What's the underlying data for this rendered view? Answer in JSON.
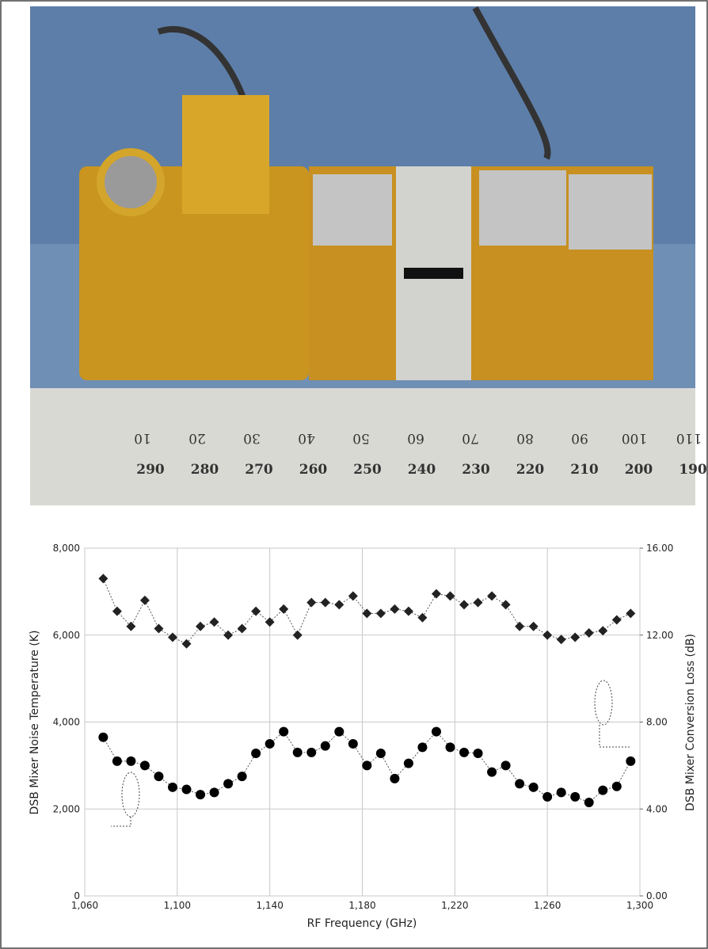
{
  "photo": {
    "ruler_top": [
      "10",
      "20",
      "30",
      "40",
      "50",
      "60",
      "70",
      "80",
      "90",
      "100",
      "110"
    ],
    "ruler_bottom": [
      "290",
      "280",
      "270",
      "260",
      "250",
      "240",
      "230",
      "220",
      "210",
      "200",
      "190"
    ]
  },
  "chart_data": {
    "type": "line",
    "x_label": "RF Frequency (GHz)",
    "y_label": "DSB Mixer Noise Temperature (K)",
    "y2_label": "DSB Mixer Conversion Loss (dB)",
    "xlim": [
      1060,
      1300
    ],
    "xticks": [
      {
        "value": 1060,
        "label": "1,060"
      },
      {
        "value": 1100,
        "label": "1,100"
      },
      {
        "value": 1140,
        "label": "1,140"
      },
      {
        "value": 1180,
        "label": "1,180"
      },
      {
        "value": 1220,
        "label": "1,220"
      },
      {
        "value": 1260,
        "label": "1,260"
      },
      {
        "value": 1300,
        "label": "1,300"
      }
    ],
    "ylim": [
      0,
      8000
    ],
    "yticks": [
      0,
      {
        "value": 2000,
        "label": "2,000"
      },
      {
        "value": 4000,
        "label": "4,000"
      },
      {
        "value": 6000,
        "label": "6,000"
      },
      {
        "value": 8000,
        "label": "8,000"
      }
    ],
    "y2lim": [
      0,
      16
    ],
    "y2ticks": [
      {
        "value": 0,
        "label": "0.00"
      },
      {
        "value": 4,
        "label": "4.00"
      },
      {
        "value": 8,
        "label": "8.00"
      },
      {
        "value": 12,
        "label": "12.00"
      },
      {
        "value": 16,
        "label": "16.00"
      }
    ],
    "grid": true,
    "x": [
      1068,
      1074,
      1080,
      1086,
      1092,
      1098,
      1104,
      1110,
      1116,
      1122,
      1128,
      1134,
      1140,
      1146,
      1152,
      1158,
      1164,
      1170,
      1176,
      1182,
      1188,
      1194,
      1200,
      1206,
      1212,
      1218,
      1224,
      1230,
      1236,
      1242,
      1248,
      1254,
      1260,
      1266,
      1272,
      1278,
      1284,
      1290,
      1296
    ],
    "series": [
      {
        "color": "#000000",
        "marker": "circle",
        "values": [
          3650,
          3100,
          3100,
          3000,
          2750,
          2500,
          2450,
          2330,
          2380,
          2580,
          2750,
          3280,
          3500,
          3780,
          3300,
          3300,
          3450,
          3780,
          3500,
          3000,
          3280,
          2700,
          3050,
          3420,
          3780,
          3420,
          3300,
          3280,
          2850,
          3000,
          2580,
          2500,
          2280,
          2380,
          2280,
          2150,
          2430,
          2520,
          3100
        ]
      },
      {
        "color": "#222222",
        "marker": "diamond",
        "axis": "y2",
        "values": [
          14.6,
          13.1,
          12.4,
          13.6,
          12.3,
          11.9,
          11.6,
          12.4,
          12.6,
          12.0,
          12.3,
          13.1,
          12.6,
          13.2,
          12.0,
          13.5,
          13.5,
          13.4,
          13.8,
          13.0,
          13.0,
          13.2,
          13.1,
          12.8,
          13.9,
          13.8,
          13.4,
          13.5,
          13.8,
          13.4,
          12.4,
          12.4,
          12.0,
          11.8,
          11.9,
          12.1,
          12.2,
          12.7,
          13.0
        ]
      }
    ]
  }
}
